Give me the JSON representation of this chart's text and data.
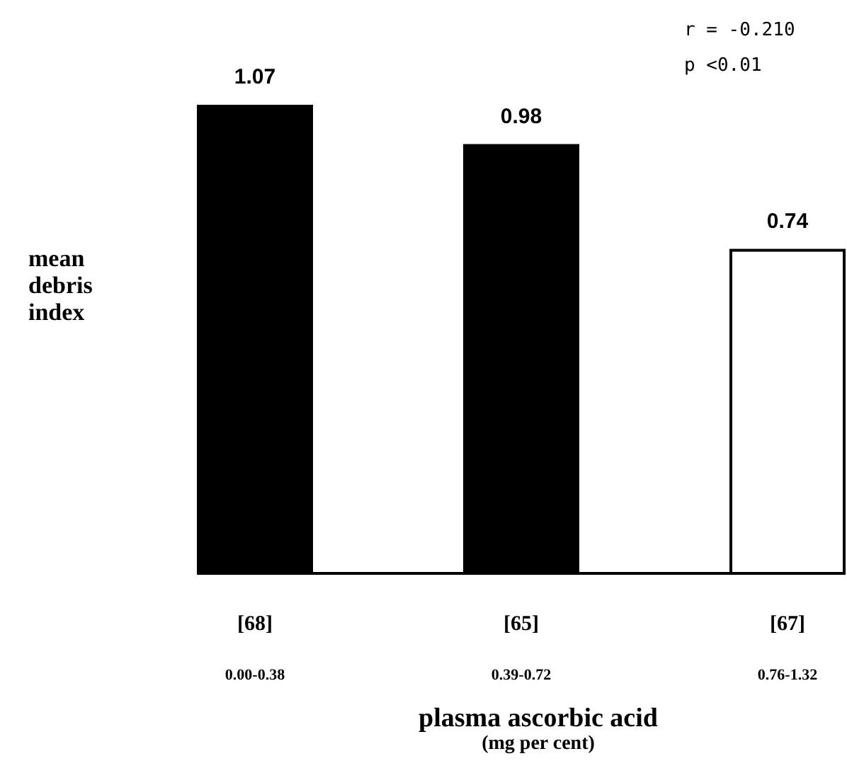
{
  "chart_data": {
    "type": "bar",
    "ylabel": "mean\ndebris\nindex",
    "xlabel": "plasma ascorbic acid\n(mg per cent)",
    "categories": [
      "[68]\n0.00-0.38",
      "[65]\n0.39-0.72",
      "[67]\n0.76-1.32"
    ],
    "values": [
      1.07,
      0.98,
      0.74
    ],
    "colors": [
      "#000000",
      "#000000",
      "#ffffff"
    ],
    "data_labels": true,
    "annotations": [
      "r = -0.210",
      "p <0.01"
    ]
  }
}
